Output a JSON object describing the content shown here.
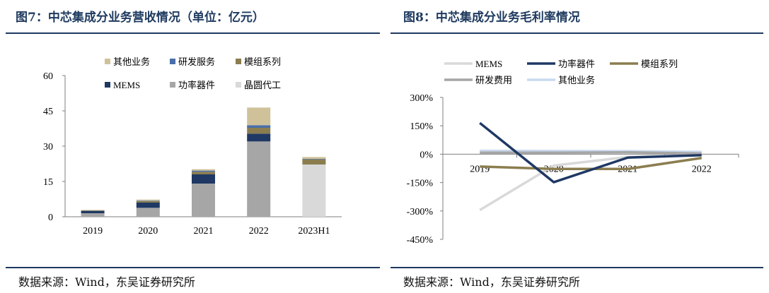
{
  "left": {
    "title": "图7：中芯集成分业务营收情况（单位：亿元）",
    "source": "数据来源：Wind，东吴证券研究所"
  },
  "right": {
    "title": "图8：中芯集成分业务毛利率情况",
    "source": "数据来源：Wind，东吴证券研究所"
  },
  "chart_data": [
    {
      "type": "bar",
      "stacked": true,
      "title": "图7：中芯集成分业务营收情况（单位：亿元）",
      "categories": [
        "2019",
        "2020",
        "2021",
        "2022",
        "2023H1"
      ],
      "ylim": [
        0,
        60
      ],
      "yticks": [
        "0",
        "15",
        "30",
        "45",
        "60"
      ],
      "grid": false,
      "legend_position": "top",
      "legend_order": [
        "其他业务",
        "研发服务",
        "模组系列",
        "MEMS",
        "功率器件",
        "晶圆代工"
      ],
      "series": [
        {
          "name": "晶圆代工",
          "color": "#d9d9d9",
          "values": [
            0,
            0,
            0,
            0,
            22.2
          ]
        },
        {
          "name": "功率器件",
          "color": "#a6a6a6",
          "values": [
            1.5,
            3.8,
            14.1,
            32.0,
            0
          ]
        },
        {
          "name": "MEMS",
          "color": "#1f3864",
          "values": [
            0.9,
            2.2,
            3.9,
            3.3,
            0
          ]
        },
        {
          "name": "模组系列",
          "color": "#8b7d4f",
          "values": [
            0.2,
            0.6,
            1.1,
            2.5,
            2.2
          ]
        },
        {
          "name": "研发服务",
          "color": "#4a6ea8",
          "values": [
            0.1,
            0.2,
            0.5,
            1.1,
            0.2
          ]
        },
        {
          "name": "其他业务",
          "color": "#cfc29a",
          "values": [
            0.2,
            0.5,
            0.6,
            7.5,
            0.8
          ]
        }
      ]
    },
    {
      "type": "line",
      "title": "图8：中芯集成分业务毛利率情况",
      "categories": [
        "2019",
        "2020",
        "2021",
        "2022"
      ],
      "ylim": [
        -450,
        300
      ],
      "yticks": [
        "300%",
        "150%",
        "0%",
        "-150%",
        "-300%",
        "-450%"
      ],
      "grid": false,
      "legend_position": "top",
      "legend_order": [
        "MEMS",
        "功率器件",
        "模组系列",
        "研发费用",
        "其他业务"
      ],
      "series": [
        {
          "name": "MEMS",
          "color": "#d9d9d9",
          "values": [
            -295,
            -60,
            -15,
            -5
          ]
        },
        {
          "name": "功率器件",
          "color": "#1f3864",
          "values": [
            165,
            -148,
            -18,
            -5
          ]
        },
        {
          "name": "模组系列",
          "color": "#8b7d4f",
          "values": [
            -65,
            -78,
            -78,
            -20
          ]
        },
        {
          "name": "研发费用",
          "color": "#a6a6a6",
          "values": [
            8,
            8,
            10,
            4
          ]
        },
        {
          "name": "其他业务",
          "color": "#c9d9ef",
          "values": [
            18,
            17,
            16,
            12
          ]
        }
      ]
    }
  ]
}
